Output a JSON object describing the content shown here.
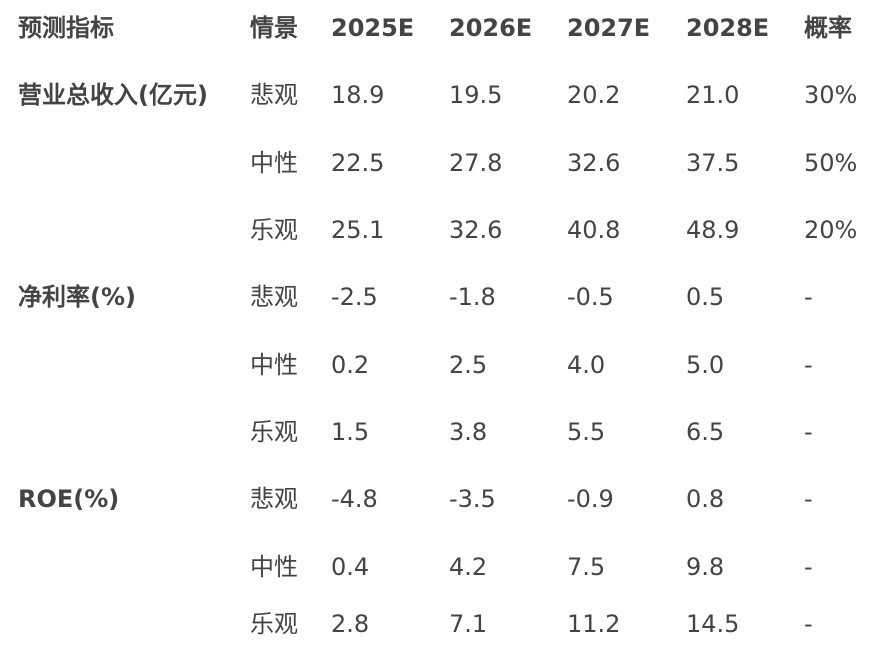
{
  "header": [
    "预测指标",
    "情景",
    "2025E",
    "2026E",
    "2027E",
    "2028E",
    "概率"
  ],
  "rows": [
    [
      "营业总收入(亿元)",
      "悲观",
      "18.9",
      "19.5",
      "20.2",
      "21.0",
      "30%"
    ],
    [
      "",
      "中性",
      "22.5",
      "27.8",
      "32.6",
      "37.5",
      "50%"
    ],
    [
      "",
      "乐观",
      "25.1",
      "32.6",
      "40.8",
      "48.9",
      "20%"
    ],
    [
      "净利率(%)",
      "悲观",
      "-2.5",
      "-1.8",
      "-0.5",
      "0.5",
      "-"
    ],
    [
      "",
      "中性",
      "0.2",
      "2.5",
      "4.0",
      "5.0",
      "-"
    ],
    [
      "",
      "乐观",
      "1.5",
      "3.8",
      "5.5",
      "6.5",
      "-"
    ],
    [
      "ROE(%)",
      "悲观",
      "-4.8",
      "-3.5",
      "-0.9",
      "0.8",
      "-"
    ],
    [
      "",
      "中性",
      "0.4",
      "4.2",
      "7.5",
      "9.8",
      "-"
    ],
    [
      "",
      "乐观",
      "2.8",
      "7.1",
      "11.2",
      "14.5",
      "-"
    ]
  ]
}
